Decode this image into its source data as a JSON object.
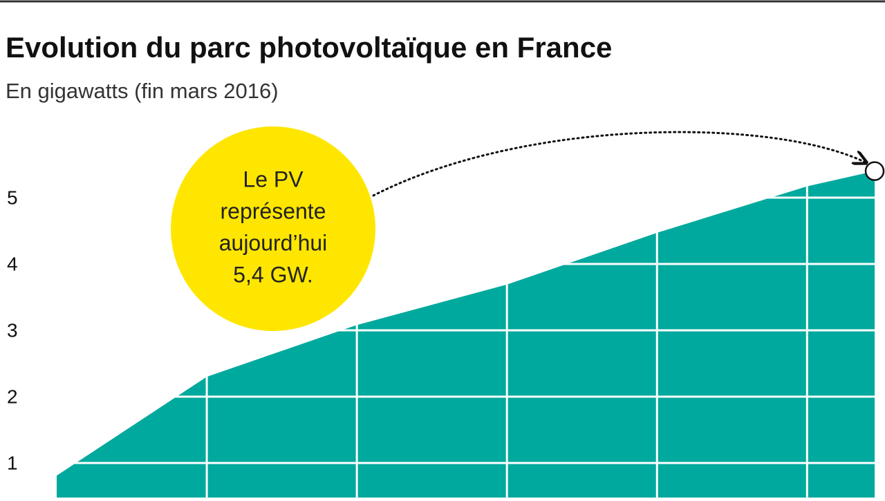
{
  "chart_data": {
    "type": "area",
    "title": "Evolution du parc photovoltaïque en France",
    "subtitle": "En gigawatts (fin mars 2016)",
    "annotation": [
      "Le PV",
      "représente",
      "aujourd’hui",
      "5,4 GW."
    ],
    "x": [
      0,
      1,
      2,
      3,
      4,
      5,
      5.45
    ],
    "values": [
      0.81,
      2.3,
      3.08,
      3.69,
      4.47,
      5.17,
      5.4
    ],
    "color": "#00a99d",
    "xlim": [
      0,
      5.45
    ],
    "xticks": [
      1,
      2,
      3,
      4,
      5
    ],
    "ylim": [
      0.5,
      5.5
    ],
    "yticks": [
      1,
      2,
      3,
      4,
      5
    ],
    "grid": true
  }
}
